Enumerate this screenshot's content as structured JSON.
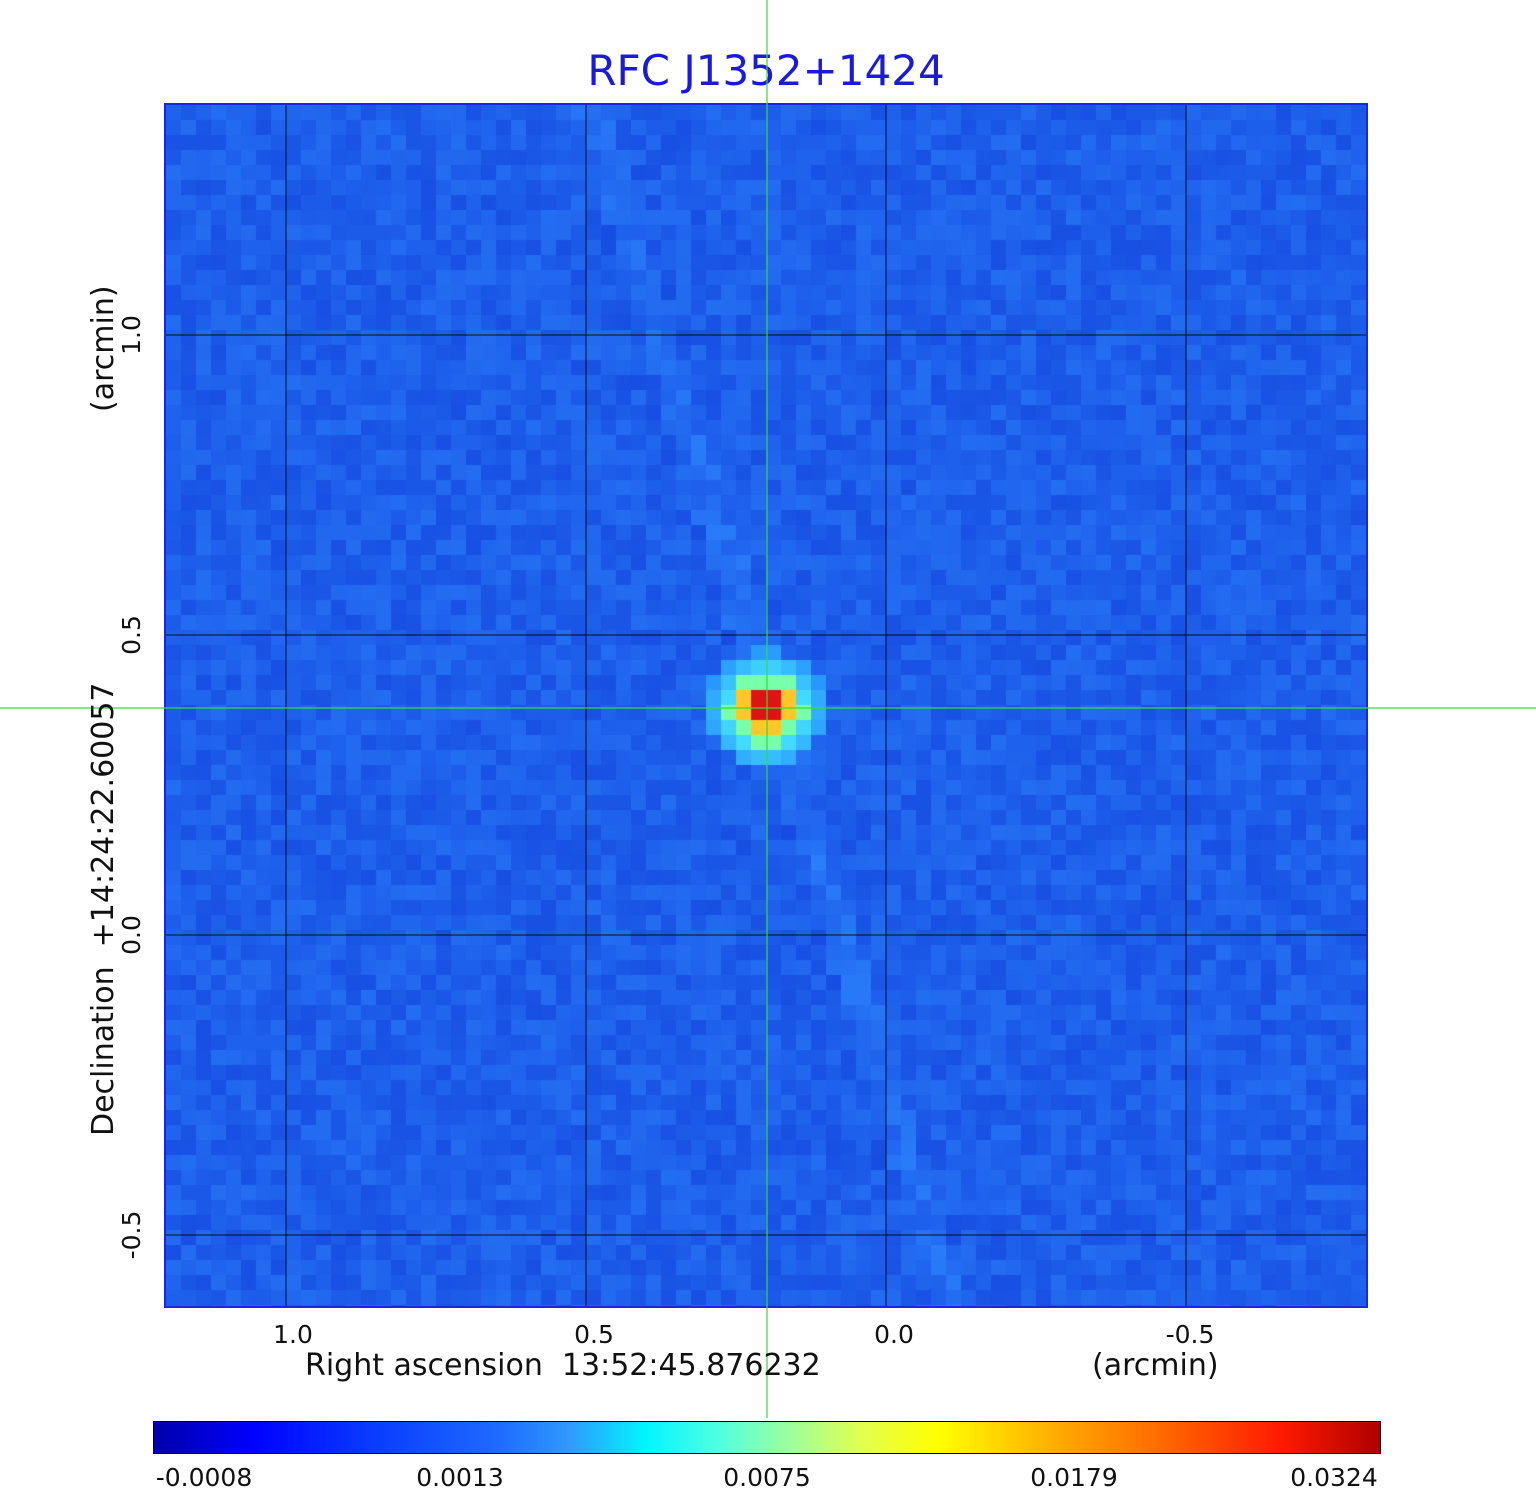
{
  "title": "RFC J1352+1424",
  "axes": {
    "x_label": "Right ascension  13:52:45.876232",
    "x_unit": "(arcmin)",
    "y_label": "Declination  +14:24:22.60057",
    "y_unit": "(arcmin)",
    "x_ticks": [
      "1.0",
      "0.5",
      "0.0",
      "-0.5"
    ],
    "y_ticks": [
      "1.0",
      "0.5",
      "0.0",
      "-0.5"
    ]
  },
  "colorbar": {
    "ticks": [
      "-0.0008",
      "0.0013",
      "0.0075",
      "0.0179",
      "0.0324"
    ]
  },
  "colors": {
    "background_map": "#1e5cf0",
    "frame": "#1428e6",
    "crosshair": "#33dd33",
    "grid": "#000000",
    "title": "#1a1adb"
  }
}
